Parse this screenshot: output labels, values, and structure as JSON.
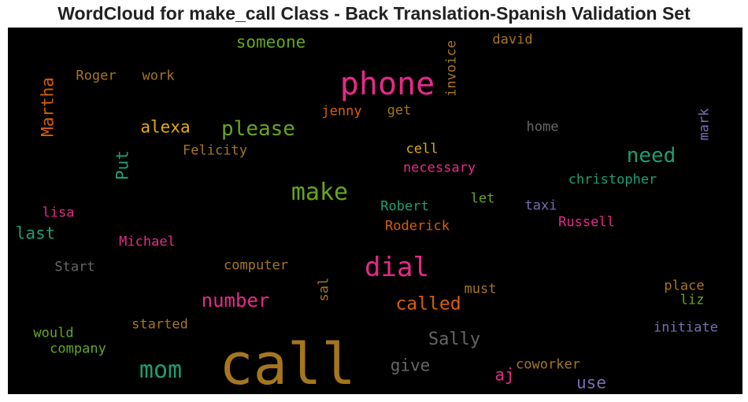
{
  "title": "WordCloud for make_call Class - Back Translation-Spanish Validation Set",
  "palette": {
    "background": "#000000",
    "gold": "#a6761d",
    "pink": "#e7298a",
    "green": "#66a61e",
    "teal": "#1b9e77",
    "orange": "#d95f02",
    "yellow": "#e6ab02",
    "purple": "#7570b3",
    "gray": "#666666"
  },
  "words": [
    {
      "text": "call",
      "color": "#a6761d"
    },
    {
      "text": "phone",
      "color": "#e7298a"
    },
    {
      "text": "dial",
      "color": "#e7298a"
    },
    {
      "text": "make",
      "color": "#66a61e"
    },
    {
      "text": "mom",
      "color": "#1b9e77"
    },
    {
      "text": "please",
      "color": "#66a61e"
    },
    {
      "text": "need",
      "color": "#1b9e77"
    },
    {
      "text": "number",
      "color": "#e7298a"
    },
    {
      "text": "called",
      "color": "#d95f02"
    },
    {
      "text": "someone",
      "color": "#66a61e"
    },
    {
      "text": "Sally",
      "color": "#666666"
    },
    {
      "text": "alexa",
      "color": "#e6ab02"
    },
    {
      "text": "Martha",
      "color": "#d95f02"
    },
    {
      "text": "Put",
      "color": "#1b9e77"
    },
    {
      "text": "give",
      "color": "#666666"
    },
    {
      "text": "last",
      "color": "#1b9e77"
    },
    {
      "text": "use",
      "color": "#7570b3"
    },
    {
      "text": "aj",
      "color": "#e7298a"
    },
    {
      "text": "Roger",
      "color": "#a6761d"
    },
    {
      "text": "work",
      "color": "#a6761d"
    },
    {
      "text": "invoice",
      "color": "#a6761d"
    },
    {
      "text": "david",
      "color": "#a6761d"
    },
    {
      "text": "jenny",
      "color": "#d95f02"
    },
    {
      "text": "get",
      "color": "#a6761d"
    },
    {
      "text": "mark",
      "color": "#7570b3"
    },
    {
      "text": "home",
      "color": "#666666"
    },
    {
      "text": "Felicity",
      "color": "#a6761d"
    },
    {
      "text": "cell",
      "color": "#e6ab02"
    },
    {
      "text": "necessary",
      "color": "#e7298a"
    },
    {
      "text": "christopher",
      "color": "#1b9e77"
    },
    {
      "text": "let",
      "color": "#66a61e"
    },
    {
      "text": "lisa",
      "color": "#e7298a"
    },
    {
      "text": "Robert",
      "color": "#1b9e77"
    },
    {
      "text": "taxi",
      "color": "#7570b3"
    },
    {
      "text": "Russell",
      "color": "#e7298a"
    },
    {
      "text": "Roderick",
      "color": "#d95f02"
    },
    {
      "text": "Michael",
      "color": "#e7298a"
    },
    {
      "text": "Start",
      "color": "#666666"
    },
    {
      "text": "computer",
      "color": "#a6761d"
    },
    {
      "text": "sal",
      "color": "#a6761d"
    },
    {
      "text": "must",
      "color": "#a6761d"
    },
    {
      "text": "place",
      "color": "#a6761d"
    },
    {
      "text": "liz",
      "color": "#66a61e"
    },
    {
      "text": "would",
      "color": "#66a61e"
    },
    {
      "text": "started",
      "color": "#a6761d"
    },
    {
      "text": "initiate",
      "color": "#7570b3"
    },
    {
      "text": "company",
      "color": "#66a61e"
    },
    {
      "text": "coworker",
      "color": "#a6761d"
    }
  ]
}
